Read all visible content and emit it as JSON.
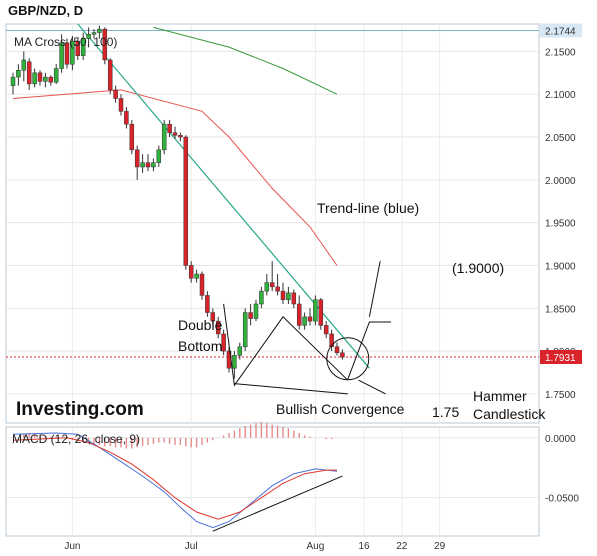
{
  "chart_data": {
    "type": "candlestick",
    "title": "GBP/NZD, D",
    "logo": "Investing.com",
    "price_panel": {
      "indicator_label": "MA Cross (50, 100)",
      "ylim": [
        1.716,
        2.182
      ],
      "y_ticks": [
        "2.1500",
        "2.1000",
        "2.0500",
        "2.0000",
        "1.9500",
        "1.9000",
        "1.8500",
        "1.8000",
        "1.7500"
      ],
      "y_tick_values": [
        2.15,
        2.1,
        2.05,
        2.0,
        1.95,
        1.9,
        1.85,
        1.8,
        1.75
      ],
      "current_price": "1.7931",
      "current_price_value": 1.7931,
      "high_marker": "2.1744",
      "high_marker_value": 2.1744,
      "candles": [
        {
          "o": 2.11,
          "h": 2.125,
          "l": 2.1,
          "c": 2.12,
          "up": true
        },
        {
          "o": 2.12,
          "h": 2.135,
          "l": 2.11,
          "c": 2.128,
          "up": true
        },
        {
          "o": 2.128,
          "h": 2.15,
          "l": 2.115,
          "c": 2.14,
          "up": true
        },
        {
          "o": 2.138,
          "h": 2.142,
          "l": 2.105,
          "c": 2.112,
          "up": false
        },
        {
          "o": 2.112,
          "h": 2.13,
          "l": 2.108,
          "c": 2.125,
          "up": true
        },
        {
          "o": 2.125,
          "h": 2.128,
          "l": 2.11,
          "c": 2.115,
          "up": false
        },
        {
          "o": 2.115,
          "h": 2.125,
          "l": 2.108,
          "c": 2.12,
          "up": true
        },
        {
          "o": 2.12,
          "h": 2.122,
          "l": 2.11,
          "c": 2.114,
          "up": false
        },
        {
          "o": 2.114,
          "h": 2.135,
          "l": 2.112,
          "c": 2.13,
          "up": true
        },
        {
          "o": 2.13,
          "h": 2.17,
          "l": 2.125,
          "c": 2.16,
          "up": true
        },
        {
          "o": 2.16,
          "h": 2.165,
          "l": 2.13,
          "c": 2.135,
          "up": false
        },
        {
          "o": 2.135,
          "h": 2.168,
          "l": 2.128,
          "c": 2.162,
          "up": true
        },
        {
          "o": 2.162,
          "h": 2.165,
          "l": 2.14,
          "c": 2.145,
          "up": false
        },
        {
          "o": 2.145,
          "h": 2.172,
          "l": 2.14,
          "c": 2.165,
          "up": true
        },
        {
          "o": 2.165,
          "h": 2.178,
          "l": 2.155,
          "c": 2.17,
          "up": true
        },
        {
          "o": 2.17,
          "h": 2.176,
          "l": 2.165,
          "c": 2.172,
          "up": true
        },
        {
          "o": 2.172,
          "h": 2.18,
          "l": 2.165,
          "c": 2.176,
          "up": true
        },
        {
          "o": 2.176,
          "h": 2.178,
          "l": 2.135,
          "c": 2.14,
          "up": false
        },
        {
          "o": 2.14,
          "h": 2.142,
          "l": 2.1,
          "c": 2.105,
          "up": false
        },
        {
          "o": 2.105,
          "h": 2.11,
          "l": 2.09,
          "c": 2.095,
          "up": false
        },
        {
          "o": 2.095,
          "h": 2.1,
          "l": 2.075,
          "c": 2.08,
          "up": false
        },
        {
          "o": 2.08,
          "h": 2.085,
          "l": 2.06,
          "c": 2.065,
          "up": false
        },
        {
          "o": 2.065,
          "h": 2.07,
          "l": 2.03,
          "c": 2.035,
          "up": false
        },
        {
          "o": 2.035,
          "h": 2.04,
          "l": 2.0,
          "c": 2.015,
          "up": false
        },
        {
          "o": 2.015,
          "h": 2.03,
          "l": 2.008,
          "c": 2.02,
          "up": true
        },
        {
          "o": 2.02,
          "h": 2.03,
          "l": 2.01,
          "c": 2.015,
          "up": false
        },
        {
          "o": 2.015,
          "h": 2.025,
          "l": 2.01,
          "c": 2.02,
          "up": true
        },
        {
          "o": 2.02,
          "h": 2.04,
          "l": 2.015,
          "c": 2.035,
          "up": true
        },
        {
          "o": 2.035,
          "h": 2.07,
          "l": 2.03,
          "c": 2.065,
          "up": true
        },
        {
          "o": 2.065,
          "h": 2.07,
          "l": 2.05,
          "c": 2.055,
          "up": false
        },
        {
          "o": 2.055,
          "h": 2.062,
          "l": 2.048,
          "c": 2.052,
          "up": false
        },
        {
          "o": 2.052,
          "h": 2.055,
          "l": 2.045,
          "c": 2.05,
          "up": false
        },
        {
          "o": 2.05,
          "h": 2.052,
          "l": 1.895,
          "c": 1.9,
          "up": false
        },
        {
          "o": 1.9,
          "h": 1.905,
          "l": 1.88,
          "c": 1.885,
          "up": false
        },
        {
          "o": 1.885,
          "h": 1.895,
          "l": 1.88,
          "c": 1.89,
          "up": true
        },
        {
          "o": 1.89,
          "h": 1.893,
          "l": 1.86,
          "c": 1.865,
          "up": false
        },
        {
          "o": 1.865,
          "h": 1.87,
          "l": 1.84,
          "c": 1.845,
          "up": false
        },
        {
          "o": 1.845,
          "h": 1.85,
          "l": 1.83,
          "c": 1.835,
          "up": false
        },
        {
          "o": 1.835,
          "h": 1.84,
          "l": 1.815,
          "c": 1.82,
          "up": false
        },
        {
          "o": 1.82,
          "h": 1.825,
          "l": 1.795,
          "c": 1.8,
          "up": false
        },
        {
          "o": 1.8,
          "h": 1.805,
          "l": 1.775,
          "c": 1.78,
          "up": false
        },
        {
          "o": 1.78,
          "h": 1.8,
          "l": 1.768,
          "c": 1.795,
          "up": true
        },
        {
          "o": 1.795,
          "h": 1.81,
          "l": 1.79,
          "c": 1.805,
          "up": true
        },
        {
          "o": 1.805,
          "h": 1.85,
          "l": 1.8,
          "c": 1.845,
          "up": true
        },
        {
          "o": 1.845,
          "h": 1.855,
          "l": 1.83,
          "c": 1.838,
          "up": false
        },
        {
          "o": 1.838,
          "h": 1.86,
          "l": 1.835,
          "c": 1.855,
          "up": true
        },
        {
          "o": 1.855,
          "h": 1.875,
          "l": 1.85,
          "c": 1.87,
          "up": true
        },
        {
          "o": 1.87,
          "h": 1.89,
          "l": 1.865,
          "c": 1.88,
          "up": true
        },
        {
          "o": 1.88,
          "h": 1.905,
          "l": 1.87,
          "c": 1.875,
          "up": false
        },
        {
          "o": 1.875,
          "h": 1.89,
          "l": 1.865,
          "c": 1.87,
          "up": false
        },
        {
          "o": 1.87,
          "h": 1.88,
          "l": 1.855,
          "c": 1.86,
          "up": false
        },
        {
          "o": 1.86,
          "h": 1.875,
          "l": 1.855,
          "c": 1.868,
          "up": true
        },
        {
          "o": 1.868,
          "h": 1.872,
          "l": 1.85,
          "c": 1.855,
          "up": false
        },
        {
          "o": 1.855,
          "h": 1.865,
          "l": 1.825,
          "c": 1.83,
          "up": false
        },
        {
          "o": 1.83,
          "h": 1.845,
          "l": 1.825,
          "c": 1.84,
          "up": true
        },
        {
          "o": 1.84,
          "h": 1.85,
          "l": 1.83,
          "c": 1.835,
          "up": false
        },
        {
          "o": 1.835,
          "h": 1.865,
          "l": 1.83,
          "c": 1.86,
          "up": true
        },
        {
          "o": 1.86,
          "h": 1.862,
          "l": 1.825,
          "c": 1.83,
          "up": false
        },
        {
          "o": 1.83,
          "h": 1.835,
          "l": 1.815,
          "c": 1.82,
          "up": false
        },
        {
          "o": 1.82,
          "h": 1.825,
          "l": 1.8,
          "c": 1.805,
          "up": false
        },
        {
          "o": 1.805,
          "h": 1.81,
          "l": 1.795,
          "c": 1.798,
          "up": false
        },
        {
          "o": 1.798,
          "h": 1.802,
          "l": 1.79,
          "c": 1.793,
          "up": false
        }
      ],
      "ma_red": [
        [
          0,
          2.095
        ],
        [
          20,
          2.105
        ],
        [
          35,
          2.08
        ],
        [
          40,
          2.05
        ],
        [
          48,
          1.99
        ],
        [
          55,
          1.945
        ],
        [
          60,
          1.9
        ]
      ],
      "ma_green": [
        [
          26,
          2.178
        ],
        [
          40,
          2.155
        ],
        [
          50,
          2.13
        ],
        [
          60,
          2.1
        ]
      ],
      "trend_line_blue": [
        [
          12,
          2.182
        ],
        [
          66,
          1.78
        ]
      ],
      "horizontal_line": 2.1744
    },
    "annotations": {
      "trend_line": "Trend-line (blue)",
      "level_1900": "(1.9000)",
      "double_bottom_1": "Double",
      "double_bottom_2": "Bottom",
      "bullish_convergence": "Bullish Convergence",
      "level_175": "1.75",
      "hammer_1": "Hammer",
      "hammer_2": "Candlestick"
    },
    "macd_panel": {
      "label": "MACD (12, 26, close, 9)",
      "ylim": [
        -0.082,
        0.009
      ],
      "y_ticks": [
        "0.0000",
        "-0.0500"
      ],
      "y_tick_values": [
        0.0,
        -0.05
      ],
      "histogram": [
        0.003,
        0.004,
        0.003,
        0.002,
        0.001,
        0.001,
        0.001,
        0.0,
        -0.001,
        -0.002,
        -0.003,
        -0.004,
        -0.005,
        -0.006,
        -0.006,
        -0.007,
        -0.007,
        -0.008,
        -0.008,
        -0.009,
        -0.009,
        -0.008,
        -0.007,
        -0.006,
        -0.005,
        -0.004,
        -0.004,
        -0.005,
        -0.006,
        -0.006,
        -0.007,
        -0.008,
        -0.008,
        -0.006,
        -0.004,
        -0.002,
        0.0,
        0.002,
        0.004,
        0.006,
        0.008,
        0.01,
        0.011,
        0.012,
        0.013,
        0.012,
        0.011,
        0.01,
        0.009,
        0.008,
        0.006,
        0.004,
        0.002,
        0.001,
        0.0,
        0.0,
        -0.001,
        -0.001
      ],
      "macd_line": [
        [
          0,
          0.003
        ],
        [
          8,
          0.004
        ],
        [
          12,
          0.003
        ],
        [
          16,
          -0.008
        ],
        [
          20,
          -0.02
        ],
        [
          24,
          -0.032
        ],
        [
          28,
          -0.045
        ],
        [
          31,
          -0.058
        ],
        [
          34,
          -0.07
        ],
        [
          37,
          -0.075
        ],
        [
          40,
          -0.07
        ],
        [
          44,
          -0.055
        ],
        [
          48,
          -0.04
        ],
        [
          52,
          -0.03
        ],
        [
          56,
          -0.026
        ],
        [
          60,
          -0.028
        ]
      ],
      "signal_line": [
        [
          0,
          -0.002
        ],
        [
          10,
          0.0
        ],
        [
          14,
          -0.004
        ],
        [
          18,
          -0.012
        ],
        [
          22,
          -0.022
        ],
        [
          26,
          -0.035
        ],
        [
          30,
          -0.05
        ],
        [
          34,
          -0.062
        ],
        [
          38,
          -0.068
        ],
        [
          42,
          -0.062
        ],
        [
          46,
          -0.05
        ],
        [
          50,
          -0.038
        ],
        [
          54,
          -0.03
        ],
        [
          58,
          -0.027
        ],
        [
          60,
          -0.027
        ]
      ],
      "convergence_line": [
        [
          37,
          -0.078
        ],
        [
          61,
          -0.032
        ]
      ]
    },
    "x_ticks": [
      "Jun",
      "Jul",
      "Aug",
      "16",
      "22",
      "29"
    ],
    "x_tick_index": [
      11,
      33,
      56,
      65,
      72,
      79
    ]
  }
}
